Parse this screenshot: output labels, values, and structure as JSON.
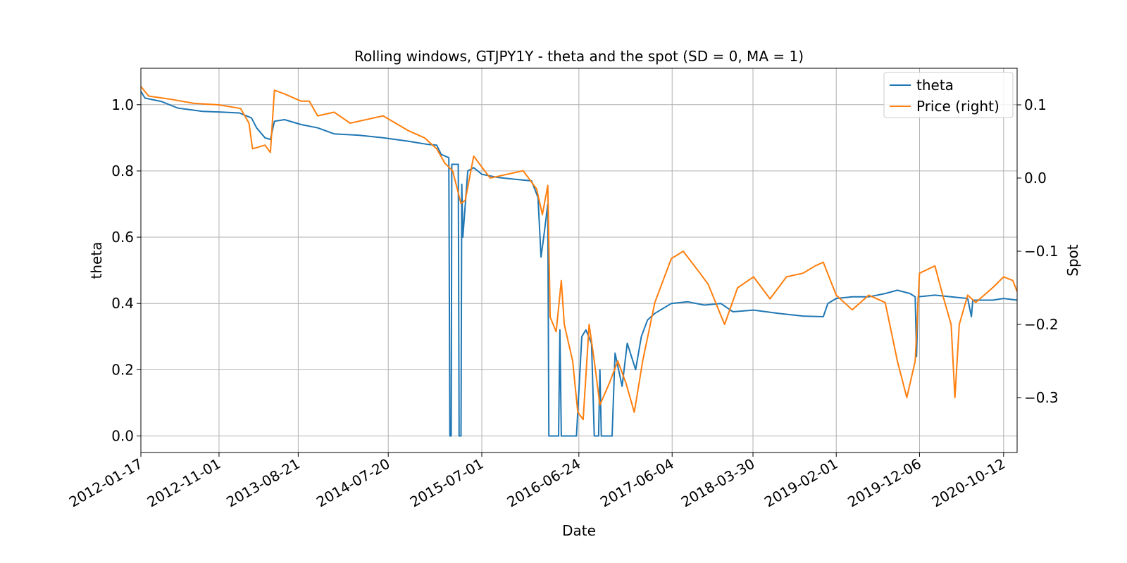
{
  "chart_data": {
    "type": "line",
    "title": "Rolling windows, GTJPY1Y - theta and the spot (SD = 0, MA = 1)",
    "xlabel": "Date",
    "ylabel": "theta",
    "ylabel_right": "Spot",
    "x_tick_labels": [
      "2012-01-17",
      "2012-11-01",
      "2013-08-21",
      "2014-07-20",
      "2015-07-01",
      "2016-06-24",
      "2017-06-04",
      "2018-03-30",
      "2019-02-01",
      "2019-12-06",
      "2020-10-12"
    ],
    "x_range": [
      "2012-01-17",
      "2020-12-01"
    ],
    "ylim": [
      -0.05,
      1.11
    ],
    "ylim_right": [
      -0.375,
      0.15
    ],
    "y_ticks": [
      0.0,
      0.2,
      0.4,
      0.6,
      0.8,
      1.0
    ],
    "y_right_ticks": [
      -0.3,
      -0.2,
      -0.1,
      0.0,
      0.1
    ],
    "grid": true,
    "legend_position": "top-right",
    "colors": {
      "theta": "#1f77b4",
      "price": "#ff7f0e"
    },
    "series": [
      {
        "name": "theta",
        "axis": "left",
        "points": [
          [
            "2012-01-17",
            1.04
          ],
          [
            "2012-02-01",
            1.02
          ],
          [
            "2012-04-01",
            1.01
          ],
          [
            "2012-06-01",
            0.99
          ],
          [
            "2012-09-01",
            0.98
          ],
          [
            "2012-11-01",
            0.978
          ],
          [
            "2013-01-15",
            0.975
          ],
          [
            "2013-03-01",
            0.96
          ],
          [
            "2013-03-20",
            0.93
          ],
          [
            "2013-04-20",
            0.9
          ],
          [
            "2013-05-10",
            0.895
          ],
          [
            "2013-05-25",
            0.95
          ],
          [
            "2013-07-01",
            0.955
          ],
          [
            "2013-09-01",
            0.94
          ],
          [
            "2013-11-01",
            0.93
          ],
          [
            "2014-01-01",
            0.912
          ],
          [
            "2014-04-01",
            0.908
          ],
          [
            "2014-07-01",
            0.9
          ],
          [
            "2014-10-01",
            0.89
          ],
          [
            "2014-12-15",
            0.88
          ],
          [
            "2015-01-15",
            0.878
          ],
          [
            "2015-02-01",
            0.85
          ],
          [
            "2015-03-01",
            0.84
          ],
          [
            "2015-03-05",
            0.0
          ],
          [
            "2015-03-10",
            0.0
          ],
          [
            "2015-03-12",
            0.82
          ],
          [
            "2015-04-05",
            0.82
          ],
          [
            "2015-04-08",
            0.0
          ],
          [
            "2015-04-15",
            0.0
          ],
          [
            "2015-04-18",
            0.76
          ],
          [
            "2015-04-22",
            0.6
          ],
          [
            "2015-05-01",
            0.7
          ],
          [
            "2015-05-10",
            0.8
          ],
          [
            "2015-06-01",
            0.81
          ],
          [
            "2015-07-01",
            0.79
          ],
          [
            "2015-09-01",
            0.78
          ],
          [
            "2015-11-01",
            0.775
          ],
          [
            "2016-01-01",
            0.77
          ],
          [
            "2016-01-25",
            0.72
          ],
          [
            "2016-02-05",
            0.54
          ],
          [
            "2016-02-15",
            0.6
          ],
          [
            "2016-03-01",
            0.7
          ],
          [
            "2016-03-05",
            0.0
          ],
          [
            "2016-04-10",
            0.0
          ],
          [
            "2016-04-15",
            0.32
          ],
          [
            "2016-04-20",
            0.0
          ],
          [
            "2016-06-15",
            0.0
          ],
          [
            "2016-07-05",
            0.3
          ],
          [
            "2016-07-20",
            0.32
          ],
          [
            "2016-08-10",
            0.28
          ],
          [
            "2016-08-20",
            0.0
          ],
          [
            "2016-09-05",
            0.0
          ],
          [
            "2016-09-10",
            0.2
          ],
          [
            "2016-09-15",
            0.0
          ],
          [
            "2016-10-25",
            0.0
          ],
          [
            "2016-11-05",
            0.25
          ],
          [
            "2016-12-01",
            0.15
          ],
          [
            "2016-12-20",
            0.28
          ],
          [
            "2017-01-20",
            0.2
          ],
          [
            "2017-02-10",
            0.3
          ],
          [
            "2017-03-05",
            0.35
          ],
          [
            "2017-04-01",
            0.37
          ],
          [
            "2017-06-01",
            0.4
          ],
          [
            "2017-08-01",
            0.405
          ],
          [
            "2017-10-01",
            0.395
          ],
          [
            "2017-12-01",
            0.4
          ],
          [
            "2018-01-15",
            0.375
          ],
          [
            "2018-04-01",
            0.38
          ],
          [
            "2018-07-01",
            0.37
          ],
          [
            "2018-10-01",
            0.362
          ],
          [
            "2018-12-15",
            0.36
          ],
          [
            "2019-01-01",
            0.4
          ],
          [
            "2019-02-01",
            0.415
          ],
          [
            "2019-04-01",
            0.42
          ],
          [
            "2019-06-01",
            0.42
          ],
          [
            "2019-08-01",
            0.43
          ],
          [
            "2019-09-15",
            0.44
          ],
          [
            "2019-11-01",
            0.43
          ],
          [
            "2019-11-20",
            0.42
          ],
          [
            "2019-11-25",
            0.24
          ],
          [
            "2019-12-01",
            0.42
          ],
          [
            "2020-02-01",
            0.425
          ],
          [
            "2020-04-01",
            0.42
          ],
          [
            "2020-06-01",
            0.415
          ],
          [
            "2020-06-15",
            0.36
          ],
          [
            "2020-06-20",
            0.41
          ],
          [
            "2020-09-01",
            0.41
          ],
          [
            "2020-10-12",
            0.415
          ],
          [
            "2020-12-01",
            0.41
          ]
        ]
      },
      {
        "name": "Price (right)",
        "axis": "right",
        "points": [
          [
            "2012-01-17",
            0.125
          ],
          [
            "2012-02-15",
            0.112
          ],
          [
            "2012-05-01",
            0.108
          ],
          [
            "2012-08-01",
            0.102
          ],
          [
            "2012-11-01",
            0.1
          ],
          [
            "2013-01-20",
            0.095
          ],
          [
            "2013-02-20",
            0.075
          ],
          [
            "2013-03-05",
            0.04
          ],
          [
            "2013-04-20",
            0.045
          ],
          [
            "2013-05-10",
            0.035
          ],
          [
            "2013-05-25",
            0.12
          ],
          [
            "2013-07-01",
            0.115
          ],
          [
            "2013-09-01",
            0.105
          ],
          [
            "2013-10-01",
            0.105
          ],
          [
            "2013-11-01",
            0.085
          ],
          [
            "2014-01-01",
            0.09
          ],
          [
            "2014-03-01",
            0.075
          ],
          [
            "2014-05-01",
            0.08
          ],
          [
            "2014-07-01",
            0.085
          ],
          [
            "2014-10-01",
            0.065
          ],
          [
            "2014-12-01",
            0.055
          ],
          [
            "2015-01-15",
            0.04
          ],
          [
            "2015-02-15",
            0.02
          ],
          [
            "2015-03-15",
            0.01
          ],
          [
            "2015-04-15",
            -0.035
          ],
          [
            "2015-05-01",
            -0.03
          ],
          [
            "2015-06-01",
            0.03
          ],
          [
            "2015-07-01",
            0.015
          ],
          [
            "2015-08-01",
            0.0
          ],
          [
            "2015-10-01",
            0.005
          ],
          [
            "2015-12-01",
            0.01
          ],
          [
            "2016-01-20",
            -0.015
          ],
          [
            "2016-02-10",
            -0.05
          ],
          [
            "2016-03-01",
            -0.01
          ],
          [
            "2016-03-10",
            -0.19
          ],
          [
            "2016-04-01",
            -0.21
          ],
          [
            "2016-04-20",
            -0.14
          ],
          [
            "2016-05-01",
            -0.2
          ],
          [
            "2016-06-01",
            -0.25
          ],
          [
            "2016-06-20",
            -0.32
          ],
          [
            "2016-07-10",
            -0.33
          ],
          [
            "2016-08-01",
            -0.2
          ],
          [
            "2016-08-20",
            -0.25
          ],
          [
            "2016-09-10",
            -0.31
          ],
          [
            "2016-10-15",
            -0.28
          ],
          [
            "2016-11-15",
            -0.25
          ],
          [
            "2016-12-15",
            -0.28
          ],
          [
            "2017-01-15",
            -0.32
          ],
          [
            "2017-02-15",
            -0.25
          ],
          [
            "2017-04-01",
            -0.17
          ],
          [
            "2017-06-01",
            -0.11
          ],
          [
            "2017-07-15",
            -0.1
          ],
          [
            "2017-09-15",
            -0.13
          ],
          [
            "2017-10-15",
            -0.145
          ],
          [
            "2017-12-15",
            -0.2
          ],
          [
            "2018-02-01",
            -0.15
          ],
          [
            "2018-04-01",
            -0.135
          ],
          [
            "2018-06-01",
            -0.165
          ],
          [
            "2018-08-01",
            -0.135
          ],
          [
            "2018-10-01",
            -0.13
          ],
          [
            "2018-11-15",
            -0.12
          ],
          [
            "2018-12-15",
            -0.115
          ],
          [
            "2019-02-01",
            -0.16
          ],
          [
            "2019-04-01",
            -0.18
          ],
          [
            "2019-06-01",
            -0.16
          ],
          [
            "2019-08-01",
            -0.17
          ],
          [
            "2019-09-15",
            -0.25
          ],
          [
            "2019-10-20",
            -0.3
          ],
          [
            "2019-11-20",
            -0.25
          ],
          [
            "2019-12-06",
            -0.13
          ],
          [
            "2020-02-01",
            -0.12
          ],
          [
            "2020-03-01",
            -0.16
          ],
          [
            "2020-04-01",
            -0.2
          ],
          [
            "2020-04-15",
            -0.3
          ],
          [
            "2020-05-01",
            -0.2
          ],
          [
            "2020-06-01",
            -0.16
          ],
          [
            "2020-07-01",
            -0.17
          ],
          [
            "2020-09-01",
            -0.15
          ],
          [
            "2020-10-12",
            -0.135
          ],
          [
            "2020-11-15",
            -0.14
          ],
          [
            "2020-12-01",
            -0.155
          ]
        ]
      }
    ]
  }
}
